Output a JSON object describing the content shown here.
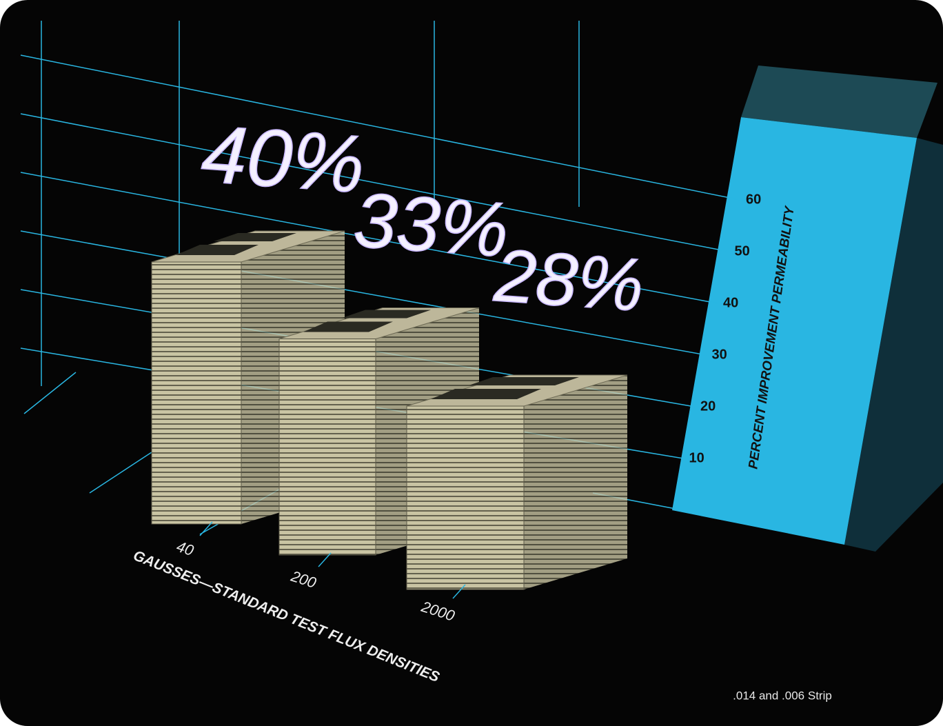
{
  "chart_data": {
    "type": "bar3d",
    "categories": [
      "40",
      "200",
      "2000"
    ],
    "values": [
      40,
      33,
      28
    ],
    "value_labels": [
      "40%",
      "33%",
      "28%"
    ],
    "color": "#c9c4a3",
    "axis_color": "#29b6e2",
    "x_label": "GAUSSES—STANDARD TEST FLUX DENSITIES",
    "y_label": "PERCENT IMPROVEMENT PERMEABILITY",
    "ylim": [
      0,
      70
    ],
    "yticks": [
      10,
      20,
      30,
      40,
      50,
      60
    ],
    "grid": true,
    "note": ".014 and .006 Strip"
  }
}
